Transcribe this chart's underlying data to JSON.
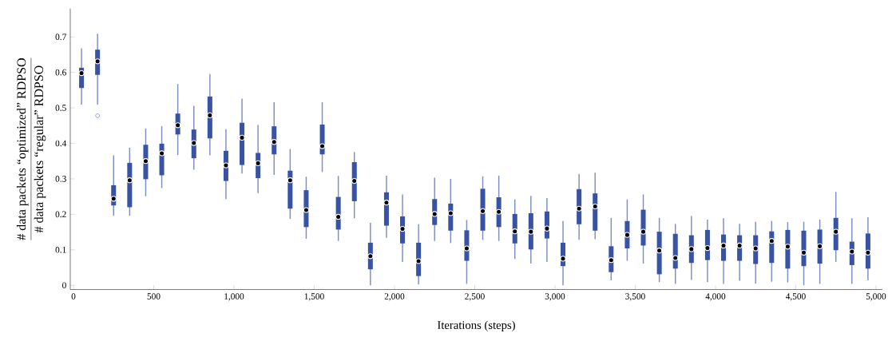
{
  "chart_data": {
    "type": "box",
    "xlabel": "Iterations (steps)",
    "ylabel": "\\frac{\\mbox{\\# data packets “optimized” RDPSO}}{\\mbox{\\# data packets “regular” RDPSO}}",
    "color": "#3953a4",
    "xlim": [
      -20,
      5040
    ],
    "ylim": [
      -0.012,
      0.78
    ],
    "xticks": [
      0,
      500,
      {
        "value": 1000,
        "label": "1,000"
      },
      {
        "value": 1500,
        "label": "1,500"
      },
      {
        "value": 2000,
        "label": "2,000"
      },
      {
        "value": 2500,
        "label": "2,500"
      },
      {
        "value": 3000,
        "label": "3,000"
      },
      {
        "value": 3500,
        "label": "3,500"
      },
      {
        "value": 4000,
        "label": "4,000"
      },
      {
        "value": 4500,
        "label": "4,500"
      },
      {
        "value": 5000,
        "label": "5,000"
      }
    ],
    "yticks": [
      0,
      0.1,
      0.2,
      0.3,
      0.4,
      0.5,
      0.6,
      0.7
    ],
    "x": [
      50,
      150,
      250,
      350,
      450,
      550,
      650,
      750,
      850,
      950,
      1050,
      1150,
      1250,
      1350,
      1450,
      1550,
      1650,
      1750,
      1850,
      1950,
      2050,
      2150,
      2250,
      2350,
      2450,
      2550,
      2650,
      2750,
      2850,
      2950,
      3050,
      3150,
      3250,
      3350,
      3450,
      3550,
      3650,
      3750,
      3850,
      3950,
      4050,
      4150,
      4250,
      4350,
      4450,
      4550,
      4650,
      4750,
      4850,
      4950
    ],
    "boxes": [
      {
        "low": 0.509,
        "q1": 0.556,
        "median": 0.598,
        "q3": 0.613,
        "high": 0.668
      },
      {
        "low": 0.509,
        "q1": 0.593,
        "median": 0.631,
        "q3": 0.664,
        "high": 0.709,
        "outliers": [
          0.478
        ]
      },
      {
        "low": 0.196,
        "q1": 0.225,
        "median": 0.244,
        "q3": 0.282,
        "high": 0.366
      },
      {
        "low": 0.196,
        "q1": 0.22,
        "median": 0.296,
        "q3": 0.345,
        "high": 0.388
      },
      {
        "low": 0.251,
        "q1": 0.299,
        "median": 0.35,
        "q3": 0.396,
        "high": 0.442
      },
      {
        "low": 0.274,
        "q1": 0.31,
        "median": 0.372,
        "q3": 0.399,
        "high": 0.449
      },
      {
        "low": 0.367,
        "q1": 0.425,
        "median": 0.451,
        "q3": 0.484,
        "high": 0.567
      },
      {
        "low": 0.326,
        "q1": 0.358,
        "median": 0.401,
        "q3": 0.439,
        "high": 0.506
      },
      {
        "low": 0.366,
        "q1": 0.414,
        "median": 0.479,
        "q3": 0.532,
        "high": 0.595
      },
      {
        "low": 0.243,
        "q1": 0.294,
        "median": 0.338,
        "q3": 0.379,
        "high": 0.44
      },
      {
        "low": 0.315,
        "q1": 0.339,
        "median": 0.416,
        "q3": 0.458,
        "high": 0.526
      },
      {
        "low": 0.26,
        "q1": 0.302,
        "median": 0.344,
        "q3": 0.373,
        "high": 0.452
      },
      {
        "low": 0.311,
        "q1": 0.369,
        "median": 0.404,
        "q3": 0.448,
        "high": 0.516
      },
      {
        "low": 0.187,
        "q1": 0.216,
        "median": 0.296,
        "q3": 0.323,
        "high": 0.384
      },
      {
        "low": 0.131,
        "q1": 0.164,
        "median": 0.212,
        "q3": 0.268,
        "high": 0.306
      },
      {
        "low": 0.319,
        "q1": 0.369,
        "median": 0.392,
        "q3": 0.453,
        "high": 0.516
      },
      {
        "low": 0.125,
        "q1": 0.157,
        "median": 0.193,
        "q3": 0.249,
        "high": 0.308
      },
      {
        "low": 0.189,
        "q1": 0.237,
        "median": 0.294,
        "q3": 0.347,
        "high": 0.375
      },
      {
        "low": 0.0,
        "q1": 0.045,
        "median": 0.082,
        "q3": 0.12,
        "high": 0.176
      },
      {
        "low": 0.134,
        "q1": 0.168,
        "median": 0.233,
        "q3": 0.262,
        "high": 0.309
      },
      {
        "low": 0.066,
        "q1": 0.118,
        "median": 0.159,
        "q3": 0.194,
        "high": 0.256
      },
      {
        "low": 0.002,
        "q1": 0.026,
        "median": 0.068,
        "q3": 0.12,
        "high": 0.172
      },
      {
        "low": 0.125,
        "q1": 0.17,
        "median": 0.201,
        "q3": 0.243,
        "high": 0.303
      },
      {
        "low": 0.119,
        "q1": 0.154,
        "median": 0.203,
        "q3": 0.23,
        "high": 0.3
      },
      {
        "low": 0.004,
        "q1": 0.069,
        "median": 0.104,
        "q3": 0.155,
        "high": 0.184
      },
      {
        "low": 0.128,
        "q1": 0.154,
        "median": 0.209,
        "q3": 0.272,
        "high": 0.307
      },
      {
        "low": 0.125,
        "q1": 0.164,
        "median": 0.207,
        "q3": 0.248,
        "high": 0.309
      },
      {
        "low": 0.074,
        "q1": 0.118,
        "median": 0.152,
        "q3": 0.201,
        "high": 0.242
      },
      {
        "low": 0.061,
        "q1": 0.101,
        "median": 0.151,
        "q3": 0.203,
        "high": 0.252
      },
      {
        "low": 0.066,
        "q1": 0.132,
        "median": 0.16,
        "q3": 0.208,
        "high": 0.246
      },
      {
        "low": 0.0,
        "q1": 0.054,
        "median": 0.075,
        "q3": 0.12,
        "high": 0.181
      },
      {
        "low": 0.128,
        "q1": 0.172,
        "median": 0.216,
        "q3": 0.271,
        "high": 0.314
      },
      {
        "low": 0.13,
        "q1": 0.154,
        "median": 0.222,
        "q3": 0.259,
        "high": 0.317
      },
      {
        "low": 0.014,
        "q1": 0.037,
        "median": 0.071,
        "q3": 0.11,
        "high": 0.19
      },
      {
        "low": 0.069,
        "q1": 0.104,
        "median": 0.142,
        "q3": 0.181,
        "high": 0.242
      },
      {
        "low": 0.061,
        "q1": 0.112,
        "median": 0.151,
        "q3": 0.213,
        "high": 0.256
      },
      {
        "low": 0.009,
        "q1": 0.031,
        "median": 0.098,
        "q3": 0.151,
        "high": 0.19
      },
      {
        "low": 0.004,
        "q1": 0.047,
        "median": 0.077,
        "q3": 0.145,
        "high": 0.173
      },
      {
        "low": 0.015,
        "q1": 0.063,
        "median": 0.102,
        "q3": 0.141,
        "high": 0.195
      },
      {
        "low": 0.009,
        "q1": 0.071,
        "median": 0.105,
        "q3": 0.156,
        "high": 0.185
      },
      {
        "low": 0.004,
        "q1": 0.069,
        "median": 0.112,
        "q3": 0.143,
        "high": 0.189
      },
      {
        "low": 0.013,
        "q1": 0.069,
        "median": 0.112,
        "q3": 0.141,
        "high": 0.173
      },
      {
        "low": 0.005,
        "q1": 0.06,
        "median": 0.104,
        "q3": 0.141,
        "high": 0.179
      },
      {
        "low": 0.01,
        "q1": 0.063,
        "median": 0.125,
        "q3": 0.152,
        "high": 0.181
      },
      {
        "low": 0.008,
        "q1": 0.047,
        "median": 0.109,
        "q3": 0.156,
        "high": 0.178
      },
      {
        "low": 0.0,
        "q1": 0.054,
        "median": 0.092,
        "q3": 0.154,
        "high": 0.179
      },
      {
        "low": 0.004,
        "q1": 0.061,
        "median": 0.11,
        "q3": 0.157,
        "high": 0.185
      },
      {
        "low": 0.066,
        "q1": 0.099,
        "median": 0.151,
        "q3": 0.19,
        "high": 0.263
      },
      {
        "low": 0.004,
        "q1": 0.057,
        "median": 0.095,
        "q3": 0.123,
        "high": 0.189
      },
      {
        "low": 0.014,
        "q1": 0.047,
        "median": 0.092,
        "q3": 0.146,
        "high": 0.192
      }
    ]
  }
}
